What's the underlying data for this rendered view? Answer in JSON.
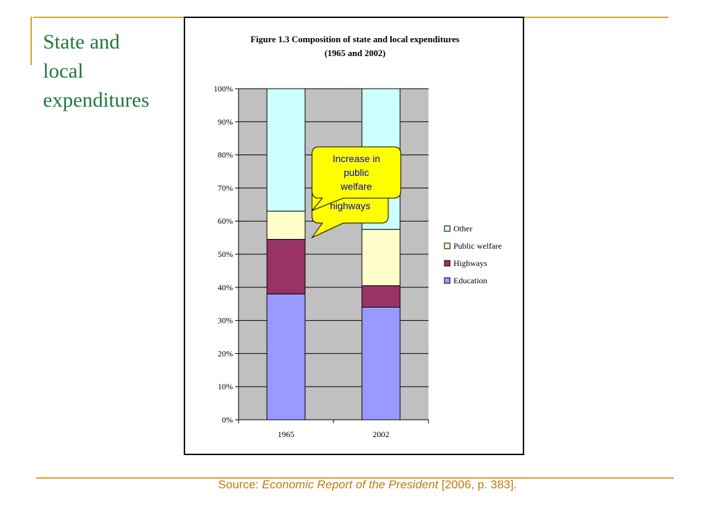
{
  "slide": {
    "title": "State and\nlocal\nexpenditures"
  },
  "source": {
    "prefix": "Source: ",
    "publication": "Economic Report of the President",
    "suffix": " [2006, p. 383]."
  },
  "callouts": {
    "back": "Decline in highways",
    "front": "Increase in public welfare"
  },
  "colors": {
    "education": "#9999ff",
    "highways": "#993366",
    "public_welfare": "#ffffcc",
    "other": "#ccffff",
    "plot_background": "#c0c0c0",
    "callout_fill": "#ffff00",
    "title_color": "#1e7a3c",
    "source_color": "#c07a10",
    "accent_line": "#d9a52b"
  },
  "chart_data": {
    "type": "bar",
    "stacked": true,
    "percent": true,
    "title": "Figure 1.3 Composition of state and local expenditures",
    "subtitle": "(1965 and 2002)",
    "categories": [
      "1965",
      "2002"
    ],
    "series": [
      {
        "name": "Education",
        "values": [
          38,
          34
        ]
      },
      {
        "name": "Highways",
        "values": [
          16.5,
          6.5
        ]
      },
      {
        "name": "Public welfare",
        "values": [
          8.5,
          17
        ]
      },
      {
        "name": "Other",
        "values": [
          37,
          42.5
        ]
      }
    ],
    "ylim": [
      0,
      100
    ],
    "yticks": [
      "0%",
      "10%",
      "20%",
      "30%",
      "40%",
      "50%",
      "60%",
      "70%",
      "80%",
      "90%",
      "100%"
    ],
    "grid": true,
    "legend": "right"
  }
}
